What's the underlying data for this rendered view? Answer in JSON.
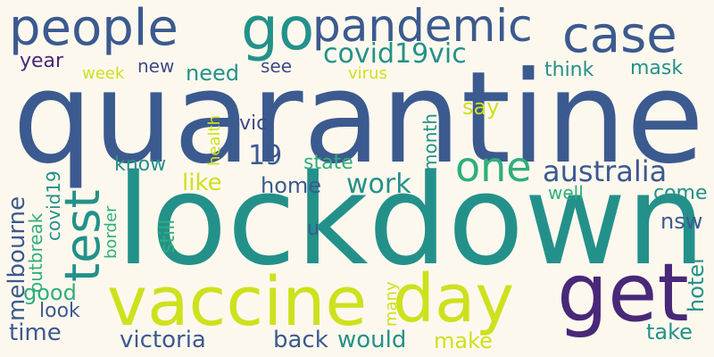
{
  "words": {
    "quarantine": "quarantine",
    "lockdown": "lockdown",
    "vaccine": "vaccine",
    "day": "day",
    "get": "get",
    "people": "people",
    "go": "go",
    "pandemic": "pandemic",
    "case": "case",
    "test": "test",
    "one": "one",
    "covid19vic": "covid19vic",
    "australia": "australia",
    "year": "year",
    "week": "week",
    "new": "new",
    "need": "need",
    "see": "see",
    "virus": "virus",
    "think": "think",
    "mask": "mask",
    "say": "say",
    "vic": "vic",
    "health": "health",
    "n19": "19",
    "month": "month",
    "state": "state",
    "know": "know",
    "like": "like",
    "home": "home",
    "work": "work",
    "well": "well",
    "come": "come",
    "nsw": "nsw",
    "melbourne": "melbourne",
    "outbreak": "outbreak",
    "covid19": "covid19",
    "border": "border",
    "still": "still",
    "u": "u",
    "good": "good",
    "look": "look",
    "time": "time",
    "victoria": "victoria",
    "back": "back",
    "would": "would",
    "make": "make",
    "many": "many",
    "take": "take",
    "hotel": "hotel"
  },
  "colors": {
    "background": "#fdf8ee",
    "navy": "#3b5a8f",
    "teal": "#23918a",
    "green": "#2fae7c",
    "lime": "#cde11d",
    "purple": "#482878"
  }
}
